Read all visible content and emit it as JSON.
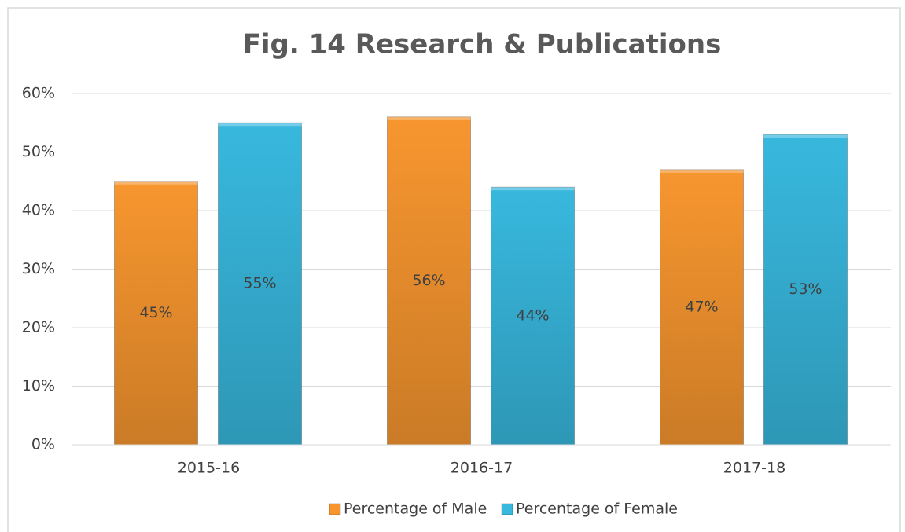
{
  "chart_data": {
    "type": "bar",
    "title": "Fig. 14 Research & Publications",
    "categories": [
      "2015-16",
      "2016-17",
      "2017-18"
    ],
    "series": [
      {
        "name": "Percentage of Male",
        "color": "#f7962f",
        "values": [
          45,
          56,
          47
        ],
        "value_labels": [
          "45%",
          "56%",
          "47%"
        ]
      },
      {
        "name": "Percentage of Female",
        "color": "#38b8de",
        "values": [
          55,
          44,
          53
        ],
        "value_labels": [
          "55%",
          "44%",
          "53%"
        ]
      }
    ],
    "ylim": [
      0,
      60
    ],
    "yticks": [
      {
        "value": 0,
        "label": "0%"
      },
      {
        "value": 10,
        "label": "10%"
      },
      {
        "value": 20,
        "label": "20%"
      },
      {
        "value": 30,
        "label": "30%"
      },
      {
        "value": 40,
        "label": "40%"
      },
      {
        "value": 50,
        "label": "50%"
      },
      {
        "value": 60,
        "label": "60%"
      }
    ],
    "grid": true,
    "legend": "bottom"
  }
}
